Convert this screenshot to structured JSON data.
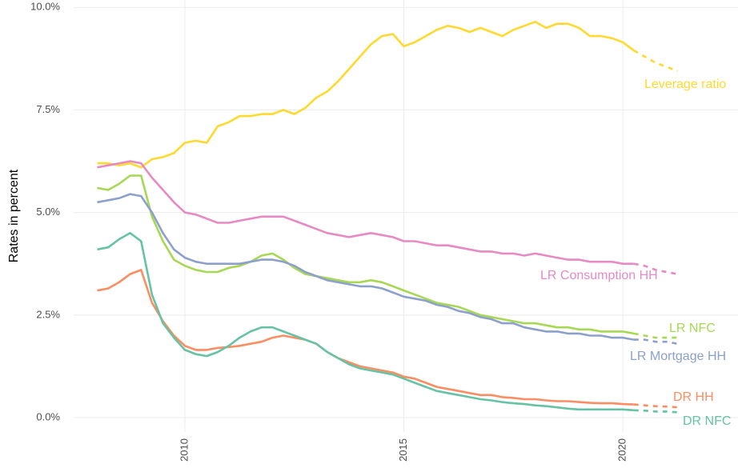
{
  "chart_data": {
    "type": "line",
    "y_label": "Rates in percent",
    "x": [
      2008,
      2008.25,
      2008.5,
      2008.75,
      2009,
      2009.25,
      2009.5,
      2009.75,
      2010,
      2010.25,
      2010.5,
      2010.75,
      2011,
      2011.25,
      2011.5,
      2011.75,
      2012,
      2012.25,
      2012.5,
      2012.75,
      2013,
      2013.25,
      2013.5,
      2013.75,
      2014,
      2014.25,
      2014.5,
      2014.75,
      2015,
      2015.25,
      2015.5,
      2015.75,
      2016,
      2016.25,
      2016.5,
      2016.75,
      2017,
      2017.25,
      2017.5,
      2017.75,
      2018,
      2018.25,
      2018.5,
      2018.75,
      2019,
      2019.25,
      2019.5,
      2019.75,
      2020,
      2020.25,
      2020.5,
      2020.75,
      2021,
      2021.25
    ],
    "dashed_from": 2020.25,
    "xlim": [
      2007.46,
      2022.63
    ],
    "xticks": [
      2010,
      2015,
      2020
    ],
    "ylim": [
      -0.35,
      10.18
    ],
    "yticks": [
      {
        "value": 0,
        "label": "0.0%"
      },
      {
        "value": 2.5,
        "label": "2.5%"
      },
      {
        "value": 5,
        "label": "5.0%"
      },
      {
        "value": 7.5,
        "label": "7.5%"
      },
      {
        "value": 10,
        "label": "10.0%"
      }
    ],
    "grid": true,
    "series": [
      {
        "name": "Leverage ratio",
        "color": "#ffd92f",
        "values": [
          6.2,
          6.2,
          6.15,
          6.2,
          6.1,
          6.3,
          6.35,
          6.45,
          6.7,
          6.75,
          6.7,
          7.1,
          7.2,
          7.35,
          7.35,
          7.4,
          7.4,
          7.5,
          7.4,
          7.55,
          7.8,
          7.95,
          8.2,
          8.5,
          8.8,
          9.1,
          9.3,
          9.35,
          9.05,
          9.15,
          9.3,
          9.45,
          9.55,
          9.5,
          9.4,
          9.5,
          9.4,
          9.3,
          9.45,
          9.55,
          9.65,
          9.5,
          9.6,
          9.6,
          9.5,
          9.3,
          9.3,
          9.25,
          9.15,
          8.95,
          8.8,
          8.65,
          8.55,
          8.45
        ]
      },
      {
        "name": "LR Consumption HH",
        "color": "#e78ac3",
        "values": [
          6.1,
          6.15,
          6.2,
          6.25,
          6.2,
          5.85,
          5.55,
          5.25,
          5.0,
          4.95,
          4.85,
          4.75,
          4.75,
          4.8,
          4.85,
          4.9,
          4.9,
          4.9,
          4.8,
          4.7,
          4.6,
          4.5,
          4.45,
          4.4,
          4.45,
          4.5,
          4.45,
          4.4,
          4.3,
          4.3,
          4.25,
          4.2,
          4.2,
          4.15,
          4.1,
          4.05,
          4.05,
          4.0,
          4.0,
          3.95,
          4.0,
          3.95,
          3.9,
          3.85,
          3.85,
          3.8,
          3.8,
          3.8,
          3.75,
          3.75,
          3.7,
          3.6,
          3.55,
          3.5
        ]
      },
      {
        "name": "LR NFC",
        "color": "#a6d854",
        "values": [
          5.6,
          5.55,
          5.7,
          5.9,
          5.9,
          4.9,
          4.3,
          3.85,
          3.7,
          3.6,
          3.55,
          3.55,
          3.65,
          3.7,
          3.8,
          3.95,
          4.0,
          3.85,
          3.65,
          3.5,
          3.45,
          3.4,
          3.35,
          3.3,
          3.3,
          3.35,
          3.3,
          3.2,
          3.1,
          3.0,
          2.9,
          2.8,
          2.75,
          2.7,
          2.6,
          2.5,
          2.45,
          2.4,
          2.35,
          2.3,
          2.3,
          2.25,
          2.2,
          2.2,
          2.15,
          2.15,
          2.1,
          2.1,
          2.1,
          2.05,
          2.0,
          1.95,
          1.95,
          1.95
        ]
      },
      {
        "name": "LR Mortgage HH",
        "color": "#8da0cb",
        "values": [
          5.25,
          5.3,
          5.35,
          5.45,
          5.4,
          5.0,
          4.5,
          4.1,
          3.9,
          3.8,
          3.75,
          3.75,
          3.75,
          3.75,
          3.8,
          3.85,
          3.85,
          3.8,
          3.7,
          3.55,
          3.45,
          3.35,
          3.3,
          3.25,
          3.2,
          3.2,
          3.15,
          3.05,
          2.95,
          2.9,
          2.85,
          2.75,
          2.7,
          2.6,
          2.55,
          2.45,
          2.4,
          2.3,
          2.3,
          2.2,
          2.15,
          2.1,
          2.1,
          2.05,
          2.05,
          2.0,
          2.0,
          1.95,
          1.95,
          1.9,
          1.9,
          1.85,
          1.85,
          1.8
        ]
      },
      {
        "name": "DR HH",
        "color": "#fc8d62",
        "values": [
          3.1,
          3.15,
          3.3,
          3.5,
          3.6,
          2.8,
          2.35,
          2.0,
          1.75,
          1.65,
          1.65,
          1.7,
          1.72,
          1.75,
          1.8,
          1.85,
          1.95,
          2.0,
          1.95,
          1.9,
          1.8,
          1.6,
          1.45,
          1.35,
          1.25,
          1.2,
          1.15,
          1.1,
          1.0,
          0.95,
          0.85,
          0.75,
          0.7,
          0.65,
          0.6,
          0.55,
          0.55,
          0.5,
          0.48,
          0.45,
          0.45,
          0.42,
          0.4,
          0.4,
          0.38,
          0.36,
          0.35,
          0.35,
          0.33,
          0.32,
          0.3,
          0.28,
          0.27,
          0.25
        ]
      },
      {
        "name": "DR NFC",
        "color": "#66c2a5",
        "values": [
          4.1,
          4.15,
          4.35,
          4.5,
          4.3,
          3.0,
          2.3,
          1.95,
          1.65,
          1.55,
          1.5,
          1.6,
          1.75,
          1.95,
          2.1,
          2.2,
          2.2,
          2.1,
          2.0,
          1.9,
          1.8,
          1.6,
          1.45,
          1.3,
          1.2,
          1.15,
          1.1,
          1.05,
          0.95,
          0.85,
          0.75,
          0.65,
          0.6,
          0.55,
          0.5,
          0.45,
          0.42,
          0.38,
          0.35,
          0.33,
          0.3,
          0.28,
          0.25,
          0.22,
          0.2,
          0.2,
          0.2,
          0.2,
          0.2,
          0.18,
          0.17,
          0.15,
          0.15,
          0.13
        ]
      }
    ]
  }
}
